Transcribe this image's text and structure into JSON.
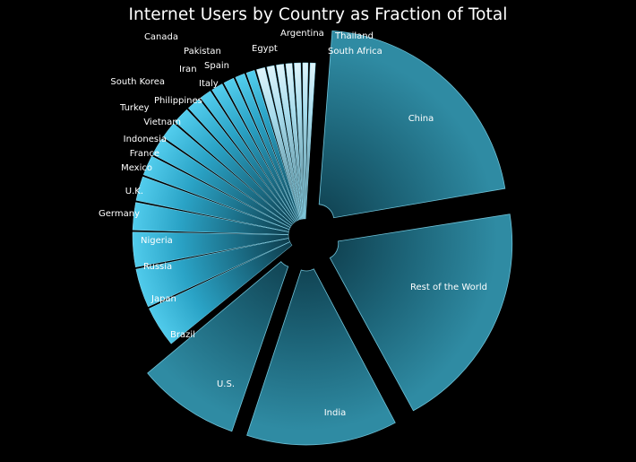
{
  "chart_data": {
    "type": "pie",
    "title": "Internet Users by Country as Fraction of Total",
    "colors": {
      "background": "#000000",
      "major_slice": "#2a7f96",
      "slice_light": "#b8e8f7",
      "slice_mid": "#3fc4e8",
      "label": "#ffffff"
    },
    "slices": [
      {
        "label": "China",
        "value": 21.6
      },
      {
        "label": "Rest of the World",
        "value": 20.0
      },
      {
        "label": "India",
        "value": 13.2
      },
      {
        "label": "U.S.",
        "value": 9.0
      },
      {
        "label": "Brazil",
        "value": 4.1
      },
      {
        "label": "Japan",
        "value": 3.9
      },
      {
        "label": "Russia",
        "value": 3.5
      },
      {
        "label": "Nigeria",
        "value": 2.8
      },
      {
        "label": "Germany",
        "value": 2.5
      },
      {
        "label": "U.K.",
        "value": 2.1
      },
      {
        "label": "Mexico",
        "value": 1.9
      },
      {
        "label": "France",
        "value": 1.8
      },
      {
        "label": "Indonesia",
        "value": 1.8
      },
      {
        "label": "Vietnam",
        "value": 1.5
      },
      {
        "label": "Turkey",
        "value": 1.3
      },
      {
        "label": "Philippines",
        "value": 1.3
      },
      {
        "label": "South Korea",
        "value": 1.2
      },
      {
        "label": "Italy",
        "value": 1.1
      },
      {
        "label": "Iran",
        "value": 1.0
      },
      {
        "label": "Spain",
        "value": 1.0
      },
      {
        "label": "Pakistan",
        "value": 0.9
      },
      {
        "label": "Canada",
        "value": 0.9
      },
      {
        "label": "Egypt",
        "value": 0.8
      },
      {
        "label": "Argentina",
        "value": 0.8
      },
      {
        "label": "Thailand",
        "value": 0.7
      },
      {
        "label": "South Africa",
        "value": 0.7
      }
    ]
  }
}
